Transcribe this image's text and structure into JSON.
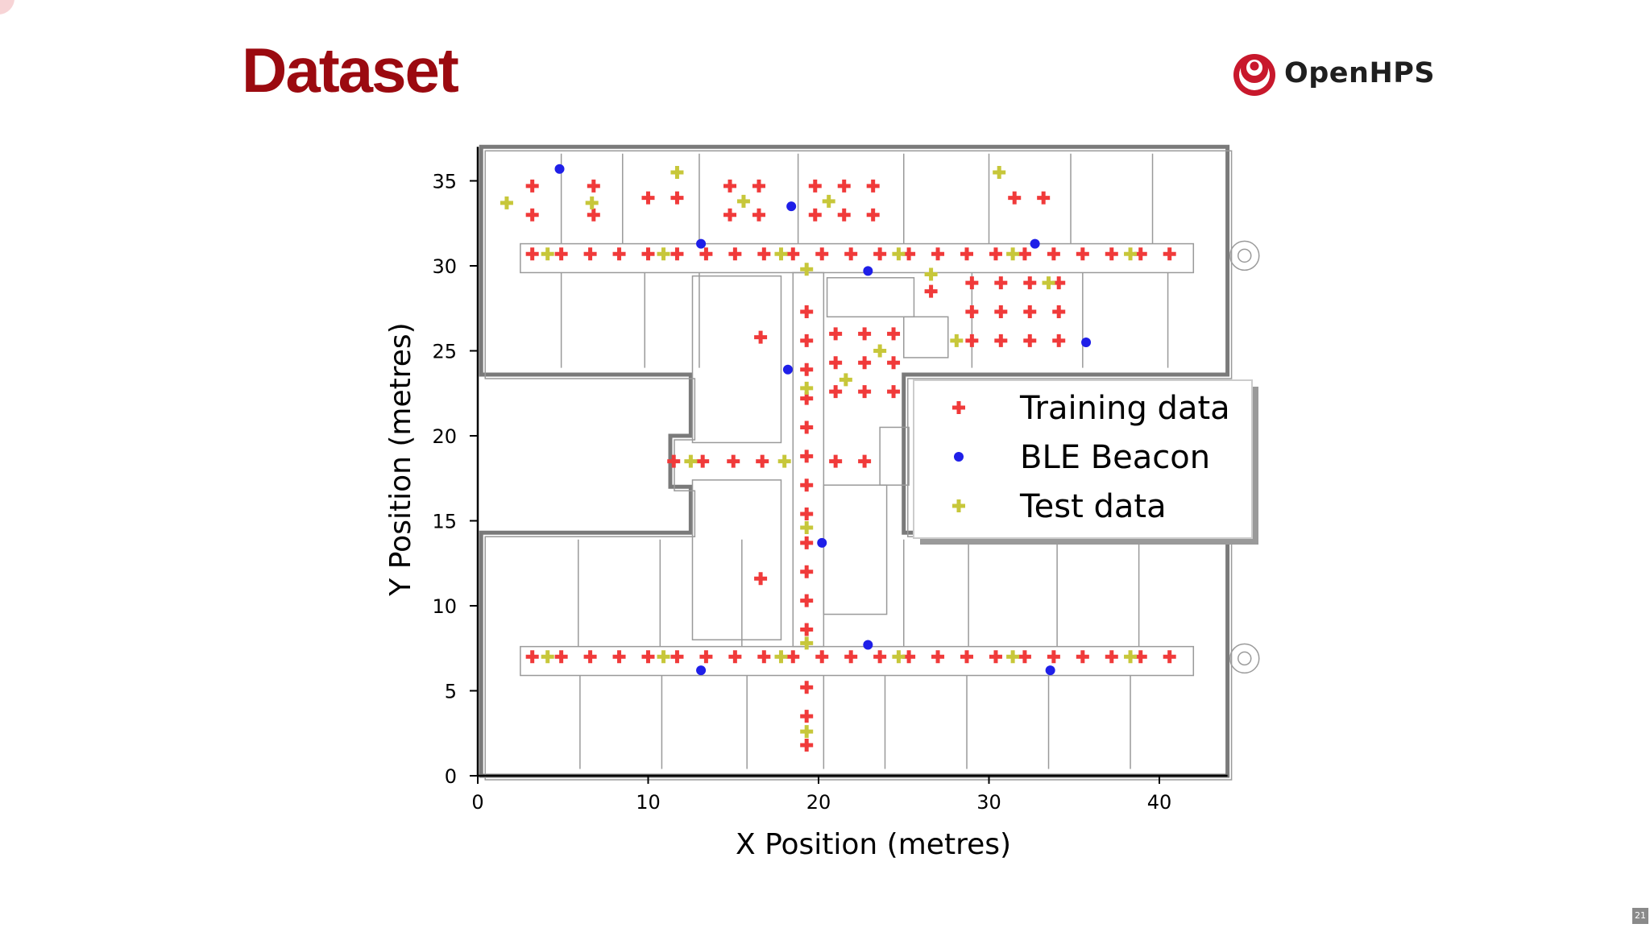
{
  "slide": {
    "title": "Dataset",
    "brand": "OpenHPS",
    "page_number": "21"
  },
  "colors": {
    "title": "#9b0a10",
    "training": "#f03a3a",
    "beacon": "#1f1fe8",
    "test": "#c7c73a",
    "walls": "#7a7a7a"
  },
  "chart_data": {
    "type": "scatter",
    "xlabel": "X Position (metres)",
    "ylabel": "Y Position (metres)",
    "xlim": [
      0,
      44
    ],
    "ylim": [
      0,
      37
    ],
    "xticks": [
      0,
      10,
      20,
      30,
      40
    ],
    "yticks": [
      0,
      5,
      10,
      15,
      20,
      25,
      30,
      35
    ],
    "grid": false,
    "background": "building floor plan",
    "legend_position": "right",
    "series": [
      {
        "name": "Training data",
        "marker": "plus",
        "color": "#f03a3a",
        "points": [
          [
            3.2,
            34.7
          ],
          [
            3.2,
            33.0
          ],
          [
            6.8,
            34.7
          ],
          [
            6.8,
            33.0
          ],
          [
            10.0,
            34.0
          ],
          [
            11.7,
            34.0
          ],
          [
            14.8,
            34.7
          ],
          [
            14.8,
            33.0
          ],
          [
            16.5,
            34.7
          ],
          [
            16.5,
            33.0
          ],
          [
            19.8,
            34.7
          ],
          [
            19.8,
            33.0
          ],
          [
            21.5,
            34.7
          ],
          [
            21.5,
            33.0
          ],
          [
            23.2,
            34.7
          ],
          [
            23.2,
            33.0
          ],
          [
            31.5,
            34.0
          ],
          [
            33.2,
            34.0
          ],
          [
            3.2,
            30.7
          ],
          [
            4.9,
            30.7
          ],
          [
            6.6,
            30.7
          ],
          [
            8.3,
            30.7
          ],
          [
            10.0,
            30.7
          ],
          [
            11.7,
            30.7
          ],
          [
            13.4,
            30.7
          ],
          [
            15.1,
            30.7
          ],
          [
            16.8,
            30.7
          ],
          [
            18.5,
            30.7
          ],
          [
            20.2,
            30.7
          ],
          [
            21.9,
            30.7
          ],
          [
            23.6,
            30.7
          ],
          [
            25.3,
            30.7
          ],
          [
            27.0,
            30.7
          ],
          [
            28.7,
            30.7
          ],
          [
            30.4,
            30.7
          ],
          [
            32.1,
            30.7
          ],
          [
            33.8,
            30.7
          ],
          [
            35.5,
            30.7
          ],
          [
            37.2,
            30.7
          ],
          [
            38.9,
            30.7
          ],
          [
            40.6,
            30.7
          ],
          [
            26.6,
            28.5
          ],
          [
            29.0,
            29.0
          ],
          [
            30.7,
            29.0
          ],
          [
            32.4,
            29.0
          ],
          [
            34.1,
            29.0
          ],
          [
            29.0,
            27.3
          ],
          [
            30.7,
            27.3
          ],
          [
            32.4,
            27.3
          ],
          [
            34.1,
            27.3
          ],
          [
            29.0,
            25.6
          ],
          [
            30.7,
            25.6
          ],
          [
            32.4,
            25.6
          ],
          [
            34.1,
            25.6
          ],
          [
            16.6,
            25.8
          ],
          [
            19.3,
            27.3
          ],
          [
            19.3,
            25.6
          ],
          [
            19.3,
            23.9
          ],
          [
            19.3,
            22.2
          ],
          [
            19.3,
            20.5
          ],
          [
            19.3,
            18.8
          ],
          [
            19.3,
            17.1
          ],
          [
            19.3,
            15.4
          ],
          [
            19.3,
            13.7
          ],
          [
            19.3,
            12.0
          ],
          [
            19.3,
            10.3
          ],
          [
            19.3,
            8.6
          ],
          [
            19.3,
            5.2
          ],
          [
            19.3,
            3.5
          ],
          [
            19.3,
            1.8
          ],
          [
            21.0,
            26.0
          ],
          [
            22.7,
            26.0
          ],
          [
            24.4,
            26.0
          ],
          [
            21.0,
            24.3
          ],
          [
            22.7,
            24.3
          ],
          [
            24.4,
            24.3
          ],
          [
            21.0,
            22.6
          ],
          [
            22.7,
            22.6
          ],
          [
            24.4,
            22.6
          ],
          [
            11.5,
            18.5
          ],
          [
            13.2,
            18.5
          ],
          [
            15.0,
            18.5
          ],
          [
            16.7,
            18.5
          ],
          [
            21.0,
            18.5
          ],
          [
            22.7,
            18.5
          ],
          [
            16.6,
            11.6
          ],
          [
            3.2,
            7.0
          ],
          [
            4.9,
            7.0
          ],
          [
            6.6,
            7.0
          ],
          [
            8.3,
            7.0
          ],
          [
            10.0,
            7.0
          ],
          [
            11.7,
            7.0
          ],
          [
            13.4,
            7.0
          ],
          [
            15.1,
            7.0
          ],
          [
            16.8,
            7.0
          ],
          [
            18.5,
            7.0
          ],
          [
            20.2,
            7.0
          ],
          [
            21.9,
            7.0
          ],
          [
            23.6,
            7.0
          ],
          [
            25.3,
            7.0
          ],
          [
            27.0,
            7.0
          ],
          [
            28.7,
            7.0
          ],
          [
            30.4,
            7.0
          ],
          [
            32.1,
            7.0
          ],
          [
            33.8,
            7.0
          ],
          [
            35.5,
            7.0
          ],
          [
            37.2,
            7.0
          ],
          [
            38.9,
            7.0
          ],
          [
            40.6,
            7.0
          ]
        ]
      },
      {
        "name": "BLE Beacon",
        "marker": "dot",
        "color": "#1f1fe8",
        "points": [
          [
            4.8,
            35.7
          ],
          [
            18.4,
            33.5
          ],
          [
            13.1,
            31.3
          ],
          [
            22.9,
            29.7
          ],
          [
            32.7,
            31.3
          ],
          [
            35.7,
            25.5
          ],
          [
            18.2,
            23.9
          ],
          [
            20.2,
            13.7
          ],
          [
            22.9,
            7.7
          ],
          [
            13.1,
            6.2
          ],
          [
            33.6,
            6.2
          ]
        ]
      },
      {
        "name": "Test data",
        "marker": "plus",
        "color": "#c7c73a",
        "points": [
          [
            1.7,
            33.7
          ],
          [
            6.7,
            33.7
          ],
          [
            11.7,
            35.5
          ],
          [
            15.6,
            33.8
          ],
          [
            20.6,
            33.8
          ],
          [
            30.6,
            35.5
          ],
          [
            4.1,
            30.7
          ],
          [
            10.9,
            30.7
          ],
          [
            17.8,
            30.7
          ],
          [
            24.7,
            30.7
          ],
          [
            31.4,
            30.7
          ],
          [
            38.3,
            30.7
          ],
          [
            19.3,
            29.8
          ],
          [
            26.6,
            29.5
          ],
          [
            33.5,
            29.0
          ],
          [
            28.1,
            25.6
          ],
          [
            23.6,
            25.0
          ],
          [
            21.6,
            23.3
          ],
          [
            19.3,
            22.8
          ],
          [
            12.5,
            18.5
          ],
          [
            18.0,
            18.5
          ],
          [
            19.3,
            14.6
          ],
          [
            19.3,
            7.8
          ],
          [
            4.1,
            7.0
          ],
          [
            10.9,
            7.0
          ],
          [
            17.8,
            7.0
          ],
          [
            24.7,
            7.0
          ],
          [
            31.4,
            7.0
          ],
          [
            38.3,
            7.0
          ],
          [
            19.3,
            2.6
          ]
        ]
      }
    ]
  }
}
